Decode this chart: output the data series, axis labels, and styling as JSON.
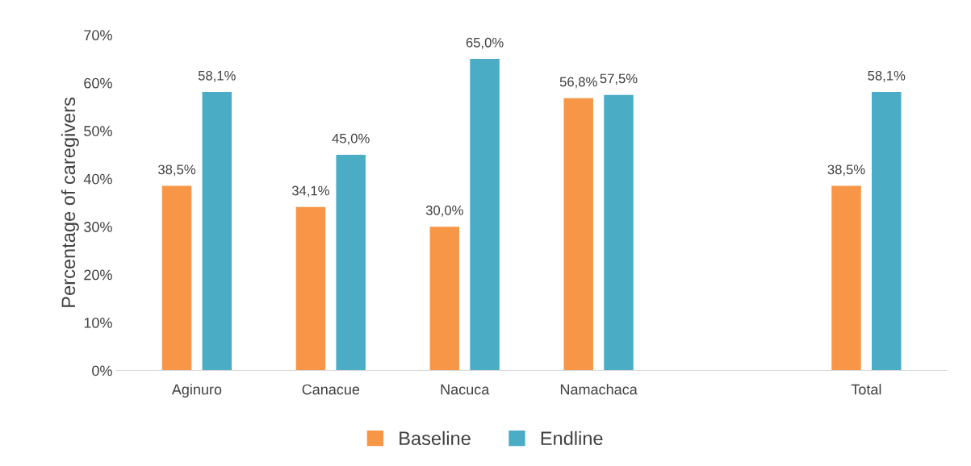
{
  "chart_data": {
    "type": "bar",
    "ylabel": "Percentage of caregivers",
    "categories": [
      "Aginuro",
      "Canacue",
      "Nacuca",
      "Namachaca",
      null,
      "Total"
    ],
    "series": [
      {
        "name": "Baseline",
        "color": "#f79646",
        "values": [
          38.5,
          34.1,
          30.0,
          56.8,
          null,
          38.5
        ],
        "value_labels": [
          "38,5%",
          "34,1%",
          "30,0%",
          "56,8%",
          null,
          "38,5%"
        ]
      },
      {
        "name": "Endline",
        "color": "#4bacc6",
        "values": [
          58.1,
          45.0,
          65.0,
          57.5,
          null,
          58.1
        ],
        "value_labels": [
          "58,1%",
          "45,0%",
          "65,0%",
          "57,5%",
          null,
          "58,1%"
        ]
      }
    ],
    "ylim": [
      0,
      70
    ],
    "yticks": [
      {
        "value": 0,
        "label": "0%"
      },
      {
        "value": 10,
        "label": "10%"
      },
      {
        "value": 20,
        "label": "20%"
      },
      {
        "value": 30,
        "label": "30%"
      },
      {
        "value": 40,
        "label": "40%"
      },
      {
        "value": 50,
        "label": "50%"
      },
      {
        "value": 60,
        "label": "60%"
      },
      {
        "value": 70,
        "label": "70%"
      }
    ],
    "legend": "bottom",
    "grid": false
  }
}
